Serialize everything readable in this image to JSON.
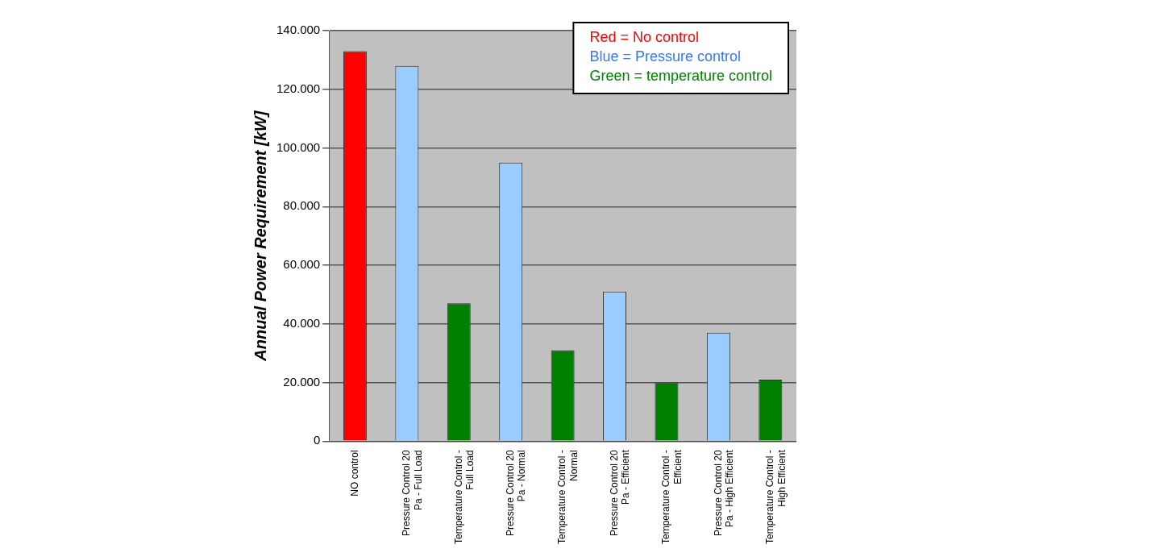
{
  "chart_data": {
    "type": "bar",
    "ylabel": "Annual Power Requirement [kW]",
    "categories": [
      "NO control",
      "Pressure Control 20 Pa - Full Load",
      "Temperature Control - Full Load",
      "Pressure Control 20 Pa - Normal",
      "Temperature Control - Normal",
      "Pressure Control 20 Pa - Efficient",
      "Temperature Control - Efficient",
      "Pressure Control 20 Pa - High Efficient",
      "Temperature Control - High Efficient"
    ],
    "values": [
      133000,
      128000,
      47000,
      95000,
      31000,
      51000,
      20000,
      37000,
      21000
    ],
    "colors": [
      "#ff0000",
      "#99ccff",
      "#008000",
      "#99ccff",
      "#008000",
      "#99ccff",
      "#008000",
      "#99ccff",
      "#008000"
    ],
    "ylim": [
      0,
      140000
    ],
    "yticks": [
      0,
      {
        "value": 20000,
        "label": "20.000"
      },
      {
        "value": 40000,
        "label": "40.000"
      },
      {
        "value": 60000,
        "label": "60.000"
      },
      {
        "value": 80000,
        "label": "80.000"
      },
      {
        "value": 100000,
        "label": "100.000"
      },
      {
        "value": 120000,
        "label": "120.000"
      },
      {
        "value": 140000,
        "label": "140.000"
      }
    ],
    "grid": "y",
    "annotations": [
      "Red = No control",
      "Blue = Pressure control",
      "Green = temperature control"
    ]
  }
}
